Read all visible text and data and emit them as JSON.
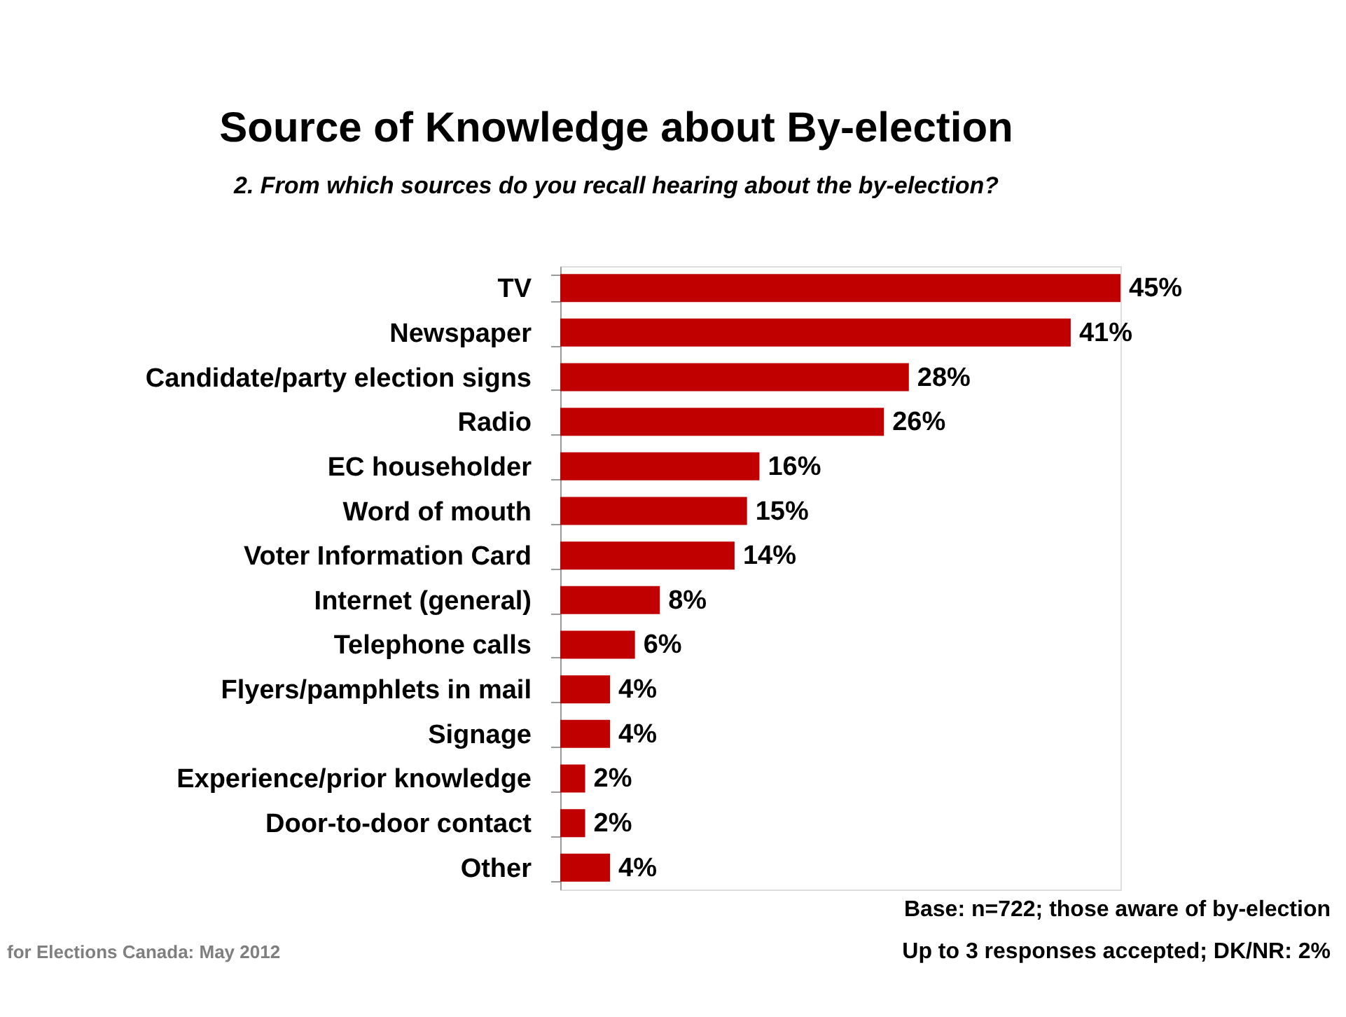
{
  "chart_data": {
    "type": "bar",
    "orientation": "horizontal",
    "title": "Source of Knowledge about By-election",
    "subtitle": "2. From which sources do you recall hearing about the by-election?",
    "categories": [
      "TV",
      "Newspaper",
      "Candidate/party election signs",
      "Radio",
      "EC householder",
      "Word of mouth",
      "Voter Information Card",
      "Internet (general)",
      "Telephone calls",
      "Flyers/pamphlets in mail",
      "Signage",
      "Experience/prior knowledge",
      "Door-to-door contact",
      "Other"
    ],
    "values": [
      45,
      41,
      28,
      26,
      16,
      15,
      14,
      8,
      6,
      4,
      4,
      2,
      2,
      4
    ],
    "value_labels": [
      "45%",
      "41%",
      "28%",
      "26%",
      "16%",
      "15%",
      "14%",
      "8%",
      "6%",
      "4%",
      "4%",
      "2%",
      "2%",
      "4%"
    ],
    "color": "#c00000",
    "tick_labels": "y",
    "annotations": [
      "for Elections Canada: May 2012",
      "Base: n=722; those aware of by-election",
      "Up to 3 responses accepted; DK/NR: 2%"
    ]
  }
}
